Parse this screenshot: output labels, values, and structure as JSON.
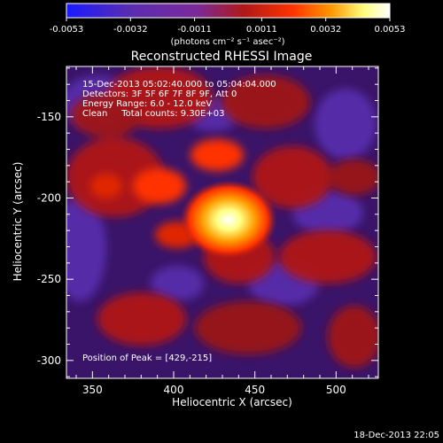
{
  "colorbar": {
    "tick_labels": [
      "-0.0053",
      "-0.0032",
      "-0.0011",
      "0.0011",
      "0.0032",
      "0.0053"
    ],
    "units_label": "(photons cm⁻² s⁻¹ asec⁻²)",
    "range": [
      -0.0053,
      0.0053
    ],
    "colors": [
      "#1a1aff",
      "#5a2db0",
      "#7a2a9a",
      "#b01818",
      "#ff3300",
      "#ff9900",
      "#ffff80",
      "#ffffff"
    ]
  },
  "image": {
    "title": "Reconstructed RHESSI Image",
    "info_lines": [
      "15-Dec-2013 05:02:40.000 to 05:04:04.000",
      "Detectors: 3F 5F 6F 7F 8F 9F, Att 0",
      "Energy Range: 6.0 - 12.0 keV",
      "Clean     Total counts: 9.30E+03"
    ],
    "peak_label": "Position of Peak = [429,-215]",
    "peak_position": [
      429,
      -215
    ],
    "xlabel": "Heliocentric X (arcsec)",
    "ylabel": "Heliocentric Y (arcsec)",
    "x_ticks": [
      "350",
      "400",
      "450",
      "500"
    ],
    "y_ticks": [
      "-150",
      "-200",
      "-250",
      "-300"
    ],
    "x_range": [
      334,
      526
    ],
    "y_range": [
      -311,
      -119
    ]
  },
  "timestamp": "18-Dec-2013 22:05"
}
